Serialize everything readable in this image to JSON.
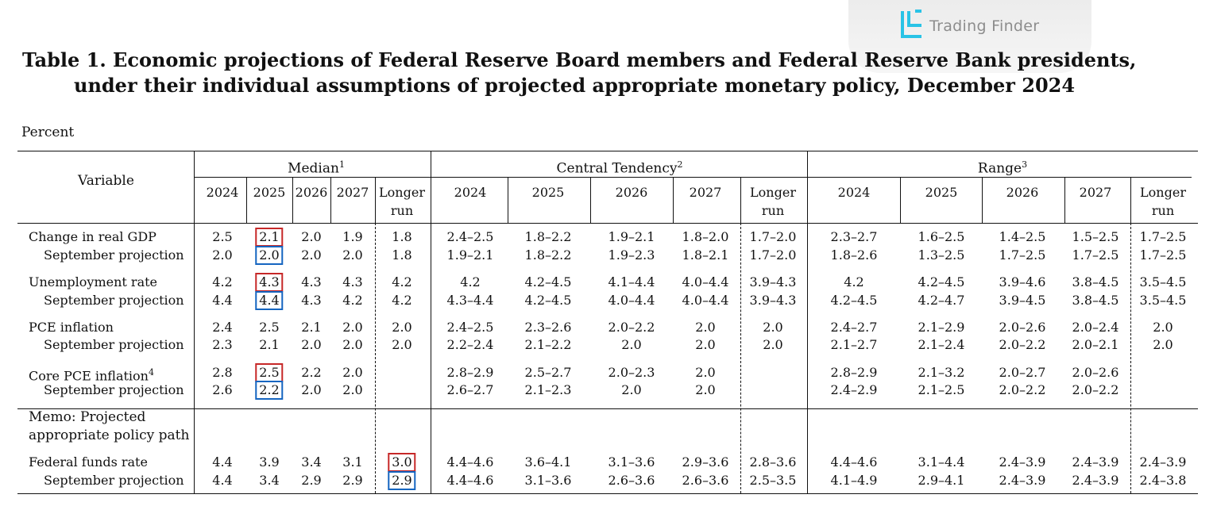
{
  "watermark": {
    "brand": "Trading Finder",
    "logo_icon": "trading-finder-logo-icon"
  },
  "title_line1": "Table 1. Economic projections of Federal Reserve Board members and Federal Reserve Bank presidents,",
  "title_line2": "under their individual assumptions of projected appropriate monetary policy, December 2024",
  "units": "Percent",
  "headers": {
    "variable": "Variable",
    "median": "Median",
    "median_note": "1",
    "central": "Central Tendency",
    "central_note": "2",
    "range": "Range",
    "range_note": "3",
    "years": [
      "2024",
      "2025",
      "2026",
      "2027"
    ],
    "longer": "Longer",
    "run": "run"
  },
  "rows": [
    {
      "label": "Change in real GDP",
      "note": "",
      "median": [
        "2.5",
        "2.1",
        "2.0",
        "1.9",
        "1.8"
      ],
      "central": [
        "2.4–2.5",
        "1.8–2.2",
        "1.9–2.1",
        "1.8–2.0",
        "1.7–2.0"
      ],
      "range": [
        "2.3–2.7",
        "1.6–2.5",
        "1.4–2.5",
        "1.5–2.5",
        "1.7–2.5"
      ]
    },
    {
      "label": "September projection",
      "note": "",
      "median": [
        "2.0",
        "2.0",
        "2.0",
        "2.0",
        "1.8"
      ],
      "central": [
        "1.9–2.1",
        "1.8–2.2",
        "1.9–2.3",
        "1.8–2.1",
        "1.7–2.0"
      ],
      "range": [
        "1.8–2.6",
        "1.3–2.5",
        "1.7–2.5",
        "1.7–2.5",
        "1.7–2.5"
      ]
    },
    {
      "label": "Unemployment rate",
      "note": "",
      "median": [
        "4.2",
        "4.3",
        "4.3",
        "4.3",
        "4.2"
      ],
      "central": [
        "4.2",
        "4.2–4.5",
        "4.1–4.4",
        "4.0–4.4",
        "3.9–4.3"
      ],
      "range": [
        "4.2",
        "4.2–4.5",
        "3.9–4.6",
        "3.8–4.5",
        "3.5–4.5"
      ]
    },
    {
      "label": "September projection",
      "note": "",
      "median": [
        "4.4",
        "4.4",
        "4.3",
        "4.2",
        "4.2"
      ],
      "central": [
        "4.3–4.4",
        "4.2–4.5",
        "4.0–4.4",
        "4.0–4.4",
        "3.9–4.3"
      ],
      "range": [
        "4.2–4.5",
        "4.2–4.7",
        "3.9–4.5",
        "3.8–4.5",
        "3.5–4.5"
      ]
    },
    {
      "label": "PCE inflation",
      "note": "",
      "median": [
        "2.4",
        "2.5",
        "2.1",
        "2.0",
        "2.0"
      ],
      "central": [
        "2.4–2.5",
        "2.3–2.6",
        "2.0–2.2",
        "2.0",
        "2.0"
      ],
      "range": [
        "2.4–2.7",
        "2.1–2.9",
        "2.0–2.6",
        "2.0–2.4",
        "2.0"
      ]
    },
    {
      "label": "September projection",
      "note": "",
      "median": [
        "2.3",
        "2.1",
        "2.0",
        "2.0",
        "2.0"
      ],
      "central": [
        "2.2–2.4",
        "2.1–2.2",
        "2.0",
        "2.0",
        "2.0"
      ],
      "range": [
        "2.1–2.7",
        "2.1–2.4",
        "2.0–2.2",
        "2.0–2.1",
        "2.0"
      ]
    },
    {
      "label": "Core PCE inflation",
      "note": "4",
      "median": [
        "2.8",
        "2.5",
        "2.2",
        "2.0",
        ""
      ],
      "central": [
        "2.8–2.9",
        "2.5–2.7",
        "2.0–2.3",
        "2.0",
        ""
      ],
      "range": [
        "2.8–2.9",
        "2.1–3.2",
        "2.0–2.7",
        "2.0–2.6",
        ""
      ]
    },
    {
      "label": "September projection",
      "note": "",
      "median": [
        "2.6",
        "2.2",
        "2.0",
        "2.0",
        ""
      ],
      "central": [
        "2.6–2.7",
        "2.1–2.3",
        "2.0",
        "2.0",
        ""
      ],
      "range": [
        "2.4–2.9",
        "2.1–2.5",
        "2.0–2.2",
        "2.0–2.2",
        ""
      ]
    },
    {
      "label": "Federal funds rate",
      "note": "",
      "median": [
        "4.4",
        "3.9",
        "3.4",
        "3.1",
        "3.0"
      ],
      "central": [
        "4.4–4.6",
        "3.6–4.1",
        "3.1–3.6",
        "2.9–3.6",
        "2.8–3.6"
      ],
      "range": [
        "4.4–4.6",
        "3.1–4.4",
        "2.4–3.9",
        "2.4–3.9",
        "2.4–3.9"
      ]
    },
    {
      "label": "September projection",
      "note": "",
      "median": [
        "4.4",
        "3.4",
        "2.9",
        "2.9",
        "2.9"
      ],
      "central": [
        "4.4–4.6",
        "3.1–3.6",
        "2.6–3.6",
        "2.6–3.6",
        "2.5–3.5"
      ],
      "range": [
        "4.1–4.9",
        "2.9–4.1",
        "2.4–3.9",
        "2.4–3.9",
        "2.4–3.8"
      ]
    }
  ],
  "memo_line1": "Memo: Projected",
  "memo_line2": "appropriate policy path",
  "highlights": [
    {
      "row": 0,
      "col": 1,
      "color": "red"
    },
    {
      "row": 1,
      "col": 1,
      "color": "blue"
    },
    {
      "row": 2,
      "col": 1,
      "color": "red"
    },
    {
      "row": 3,
      "col": 1,
      "color": "blue"
    },
    {
      "row": 6,
      "col": 1,
      "color": "red"
    },
    {
      "row": 7,
      "col": 1,
      "color": "blue"
    },
    {
      "row": 8,
      "col": 4,
      "color": "red"
    },
    {
      "row": 9,
      "col": 4,
      "color": "blue"
    }
  ]
}
